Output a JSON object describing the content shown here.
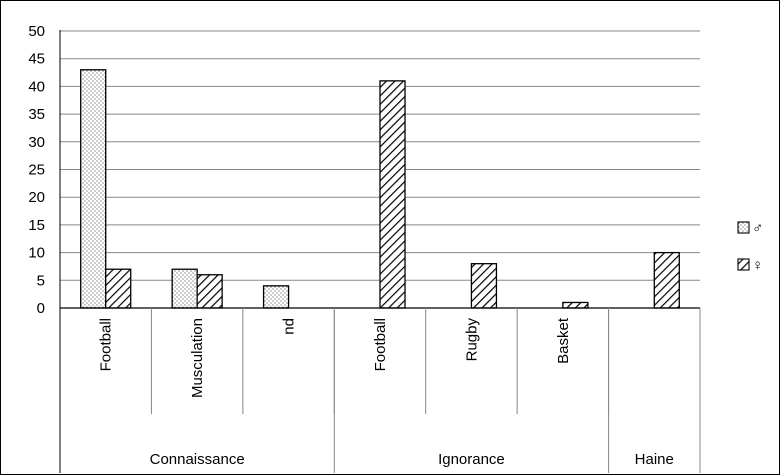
{
  "chart_data": {
    "type": "bar",
    "title": "",
    "xlabel": "",
    "ylabel": "",
    "ylim": [
      0,
      50
    ],
    "yticks": [
      0,
      5,
      10,
      15,
      20,
      25,
      30,
      35,
      40,
      45,
      50
    ],
    "grid": true,
    "legend_position": "right",
    "groups": [
      {
        "label": "Connaissance",
        "categories": [
          "Football",
          "Musculation",
          "nd"
        ]
      },
      {
        "label": "Ignorance",
        "categories": [
          "Football",
          "Rugby",
          "Basket"
        ]
      },
      {
        "label": "Haine",
        "categories": [
          ""
        ]
      }
    ],
    "categories": [
      "Football",
      "Musculation",
      "nd",
      "Football",
      "Rugby",
      "Basket",
      ""
    ],
    "series": [
      {
        "name": "♂",
        "pattern": "dots",
        "values": [
          43,
          7,
          4,
          0,
          0,
          0,
          0
        ]
      },
      {
        "name": "♀",
        "pattern": "hatch",
        "values": [
          7,
          6,
          0,
          41,
          8,
          1,
          10
        ]
      }
    ]
  }
}
